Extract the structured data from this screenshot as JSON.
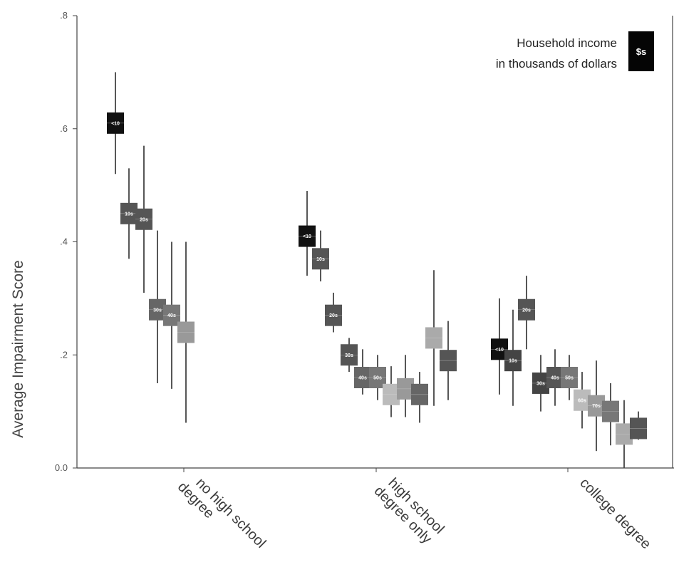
{
  "chart_data": {
    "type": "scatter",
    "ylabel": "Average Impairment Score",
    "ylim": [
      0,
      0.8
    ],
    "y_ticks": [
      {
        "value": 0.8,
        "label": ".8"
      },
      {
        "value": 0.6,
        "label": ".6"
      },
      {
        "value": 0.4,
        "label": ".4"
      },
      {
        "value": 0.2,
        "label": ".2"
      },
      {
        "value": 0.0,
        "label": "0.0"
      }
    ],
    "categories": [
      {
        "label_lines": [
          "no high school",
          "degree"
        ]
      },
      {
        "label_lines": [
          "high school",
          "degree only"
        ]
      },
      {
        "label_lines": [
          "college degree"
        ]
      }
    ],
    "legend": {
      "lines": [
        "Household income",
        "in thousands of dollars"
      ],
      "badge": "$s"
    },
    "grid": false,
    "series": [
      {
        "group": 0,
        "value": 0.61,
        "low": 0.52,
        "high": 0.7,
        "marker": "<10",
        "color": "#111111"
      },
      {
        "group": 0,
        "value": 0.45,
        "low": 0.37,
        "high": 0.53,
        "marker": "10s",
        "color": "#555555"
      },
      {
        "group": 0,
        "value": 0.44,
        "low": 0.31,
        "high": 0.57,
        "marker": "20s",
        "color": "#555555"
      },
      {
        "group": 0,
        "value": 0.28,
        "low": 0.15,
        "high": 0.42,
        "marker": "30s",
        "color": "#666666"
      },
      {
        "group": 0,
        "value": 0.27,
        "low": 0.14,
        "high": 0.4,
        "marker": "40s",
        "color": "#777777"
      },
      {
        "group": 0,
        "value": 0.24,
        "low": 0.08,
        "high": 0.4,
        "marker": "",
        "color": "#999999"
      },
      {
        "group": 1,
        "value": 0.41,
        "low": 0.34,
        "high": 0.49,
        "marker": "<10",
        "color": "#111111"
      },
      {
        "group": 1,
        "value": 0.37,
        "low": 0.33,
        "high": 0.42,
        "marker": "10s",
        "color": "#555555"
      },
      {
        "group": 1,
        "value": 0.27,
        "low": 0.24,
        "high": 0.31,
        "marker": "20s",
        "color": "#555555"
      },
      {
        "group": 1,
        "value": 0.2,
        "low": 0.17,
        "high": 0.23,
        "marker": "30s",
        "color": "#555555"
      },
      {
        "group": 1,
        "value": 0.16,
        "low": 0.13,
        "high": 0.21,
        "marker": "40s",
        "color": "#666666"
      },
      {
        "group": 1,
        "value": 0.16,
        "low": 0.12,
        "high": 0.2,
        "marker": "50s",
        "color": "#777777"
      },
      {
        "group": 1,
        "value": 0.13,
        "low": 0.09,
        "high": 0.18,
        "marker": "",
        "color": "#bbbbbb"
      },
      {
        "group": 1,
        "value": 0.14,
        "low": 0.09,
        "high": 0.2,
        "marker": "",
        "color": "#999999"
      },
      {
        "group": 1,
        "value": 0.13,
        "low": 0.08,
        "high": 0.17,
        "marker": "",
        "color": "#666666"
      },
      {
        "group": 1,
        "value": 0.23,
        "low": 0.11,
        "high": 0.35,
        "marker": "",
        "color": "#aaaaaa"
      },
      {
        "group": 1,
        "value": 0.19,
        "low": 0.12,
        "high": 0.26,
        "marker": "",
        "color": "#555555"
      },
      {
        "group": 2,
        "value": 0.21,
        "low": 0.13,
        "high": 0.3,
        "marker": "<10",
        "color": "#111111"
      },
      {
        "group": 2,
        "value": 0.19,
        "low": 0.11,
        "high": 0.28,
        "marker": "10s",
        "color": "#444444"
      },
      {
        "group": 2,
        "value": 0.28,
        "low": 0.21,
        "high": 0.34,
        "marker": "20s",
        "color": "#555555"
      },
      {
        "group": 2,
        "value": 0.15,
        "low": 0.1,
        "high": 0.2,
        "marker": "30s",
        "color": "#444444"
      },
      {
        "group": 2,
        "value": 0.16,
        "low": 0.11,
        "high": 0.21,
        "marker": "40s",
        "color": "#555555"
      },
      {
        "group": 2,
        "value": 0.16,
        "low": 0.12,
        "high": 0.2,
        "marker": "50s",
        "color": "#777777"
      },
      {
        "group": 2,
        "value": 0.12,
        "low": 0.07,
        "high": 0.17,
        "marker": "60s",
        "color": "#bbbbbb"
      },
      {
        "group": 2,
        "value": 0.11,
        "low": 0.03,
        "high": 0.19,
        "marker": "70s",
        "color": "#999999"
      },
      {
        "group": 2,
        "value": 0.1,
        "low": 0.04,
        "high": 0.15,
        "marker": "",
        "color": "#777777"
      },
      {
        "group": 2,
        "value": 0.06,
        "low": 0.0,
        "high": 0.12,
        "marker": "",
        "color": "#aaaaaa"
      },
      {
        "group": 2,
        "value": 0.07,
        "low": 0.05,
        "high": 0.1,
        "marker": "",
        "color": "#555555"
      }
    ]
  }
}
